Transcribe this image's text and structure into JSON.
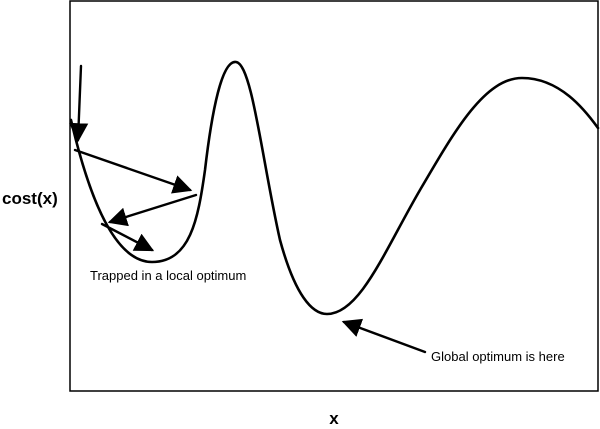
{
  "axes": {
    "x_label": "x",
    "y_label": "cost(x)"
  },
  "annotations": {
    "local": "Trapped in a local optimum",
    "global": "Global optimum is here"
  }
}
